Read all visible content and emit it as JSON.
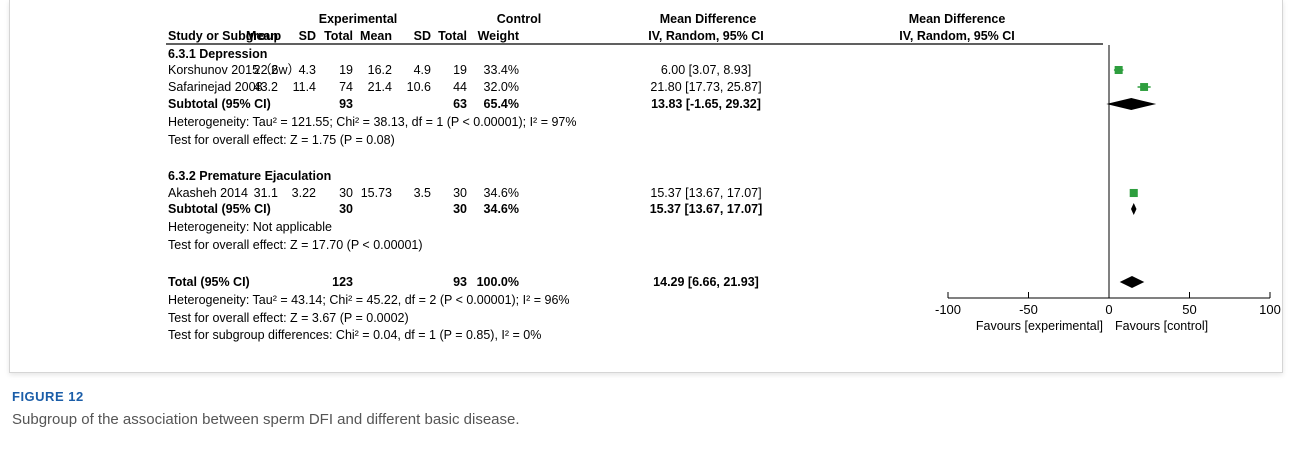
{
  "figure": {
    "label": "FIGURE 12",
    "caption": "Subgroup of the association between sperm DFI and different basic disease."
  },
  "header": {
    "experimental": "Experimental",
    "control": "Control",
    "md_left": "Mean Difference",
    "md_right": "Mean Difference",
    "study": "Study or Subgroup",
    "mean": "Mean",
    "sd": "SD",
    "total": "Total",
    "weight": "Weight",
    "ci_left": "IV, Random, 95% CI",
    "ci_right": "IV, Random, 95% CI"
  },
  "chart_data": {
    "type": "forest",
    "measure": "Mean Difference",
    "method": "IV, Random, 95% CI",
    "x_range": [
      -100,
      100
    ],
    "x_ticks": [
      {
        "value": -100,
        "label": "-100"
      },
      {
        "value": -50,
        "label": "-50"
      },
      {
        "value": 0,
        "label": "0"
      },
      {
        "value": 50,
        "label": "50"
      },
      {
        "value": 100,
        "label": "100"
      }
    ],
    "favours_left": "Favours [experimental]",
    "favours_right": "Favours [control]",
    "marker_color": "#2e9e3e",
    "subgroups": [
      {
        "title": "6.3.1 Depression",
        "studies": [
          {
            "name": "Korshunov 2015（6w）",
            "e_mean": "22.2",
            "e_sd": "4.3",
            "e_total": "19",
            "c_mean": "16.2",
            "c_sd": "4.9",
            "c_total": "19",
            "weight": "33.4%",
            "ci_text": "6.00 [3.07, 8.93]",
            "md": 6.0,
            "lo": 3.07,
            "hi": 8.93,
            "w": 33.4
          },
          {
            "name": "Safarinejad 2008",
            "e_mean": "43.2",
            "e_sd": "11.4",
            "e_total": "74",
            "c_mean": "21.4",
            "c_sd": "10.6",
            "c_total": "44",
            "weight": "32.0%",
            "ci_text": "21.80 [17.73, 25.87]",
            "md": 21.8,
            "lo": 17.73,
            "hi": 25.87,
            "w": 32.0
          }
        ],
        "subtotal": {
          "label": "Subtotal (95% CI)",
          "e_total": "93",
          "c_total": "63",
          "weight": "65.4%",
          "ci_text": "13.83 [-1.65, 29.32]",
          "md": 13.83,
          "lo": -1.65,
          "hi": 29.32
        },
        "heterogeneity": "Heterogeneity: Tau² = 121.55; Chi² = 38.13, df = 1 (P < 0.00001); I² = 97%",
        "overall": "Test for overall effect: Z = 1.75 (P = 0.08)"
      },
      {
        "title": "6.3.2 Premature Ejaculation",
        "studies": [
          {
            "name": "Akasheh 2014",
            "e_mean": "31.1",
            "e_sd": "3.22",
            "e_total": "30",
            "c_mean": "15.73",
            "c_sd": "3.5",
            "c_total": "30",
            "weight": "34.6%",
            "ci_text": "15.37 [13.67, 17.07]",
            "md": 15.37,
            "lo": 13.67,
            "hi": 17.07,
            "w": 34.6
          }
        ],
        "subtotal": {
          "label": "Subtotal (95% CI)",
          "e_total": "30",
          "c_total": "30",
          "weight": "34.6%",
          "ci_text": "15.37 [13.67, 17.07]",
          "md": 15.37,
          "lo": 13.67,
          "hi": 17.07
        },
        "heterogeneity": "Heterogeneity: Not applicable",
        "overall": "Test for overall effect: Z = 17.70 (P < 0.00001)"
      }
    ],
    "total": {
      "label": "Total (95% CI)",
      "e_total": "123",
      "c_total": "93",
      "weight": "100.0%",
      "ci_text": "14.29 [6.66, 21.93]",
      "md": 14.29,
      "lo": 6.66,
      "hi": 21.93
    },
    "total_heterogeneity": "Heterogeneity: Tau² = 43.14; Chi² = 45.22, df = 2 (P < 0.00001); I² = 96%",
    "total_overall": "Test for overall effect: Z = 3.67 (P = 0.0002)",
    "subgroup_differences": "Test for subgroup differences: Chi² = 0.04, df = 1 (P = 0.85), I² = 0%"
  }
}
